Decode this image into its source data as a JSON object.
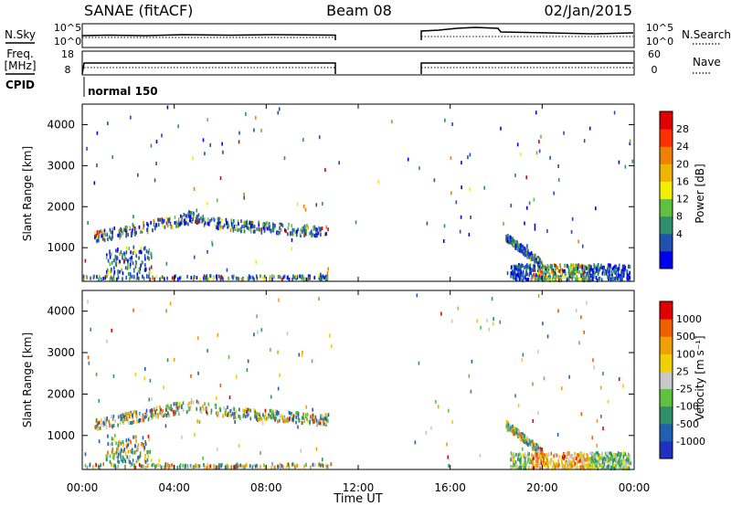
{
  "header": {
    "station": "SANAE (fitACF)",
    "beam": "Beam 08",
    "date": "02/Jan/2015"
  },
  "status_panels": {
    "nsky_label": "N.Sky",
    "nsearch_label": "N.Search",
    "noise_ticks": [
      "10^5",
      "10^0"
    ],
    "freq_label_line1": "Freq.",
    "freq_label_line2": "[MHz]",
    "freq_ticks": [
      "18",
      "8"
    ],
    "nave_label": "Nave",
    "nave_ticks": [
      "60",
      "0"
    ],
    "cpid_label": "CPID",
    "cpid_value": "normal 150"
  },
  "chart_data": [
    {
      "type": "heatmap",
      "name": "power",
      "ylabel": "Slant Range [km]",
      "colorbar_label": "Power [dB]",
      "colorbar_ticks": [
        "28",
        "24",
        "20",
        "16",
        "12",
        "8",
        "4"
      ],
      "colorbar_colors": [
        "#0000ee",
        "#2050b0",
        "#2f8f6a",
        "#60c040",
        "#f0f000",
        "#f0b400",
        "#f08000",
        "#ff3000",
        "#e00000"
      ],
      "ylim": [
        180,
        4500
      ],
      "yticks": [
        "1000",
        "2000",
        "3000",
        "4000"
      ],
      "xlim": [
        "00:00",
        "24:00"
      ],
      "data_gap_hours": [
        10.85,
        14.9
      ]
    },
    {
      "type": "heatmap",
      "name": "velocity",
      "ylabel": "Slant Range [km]",
      "colorbar_label": "Velocity [m s⁻¹]",
      "colorbar_ticks": [
        "1000",
        "500",
        "100",
        "25",
        "-25",
        "-100",
        "-500",
        "-1000"
      ],
      "colorbar_colors": [
        "#2030c0",
        "#2060b0",
        "#2f8f6a",
        "#60c040",
        "#c8c8c8",
        "#f0d000",
        "#f0a000",
        "#f06000",
        "#e00000"
      ],
      "ylim": [
        180,
        4500
      ],
      "yticks": [
        "1000",
        "2000",
        "3000",
        "4000"
      ],
      "xlim": [
        "00:00",
        "24:00"
      ],
      "data_gap_hours": [
        10.85,
        14.9
      ]
    }
  ],
  "x_axis": {
    "ticks": [
      "00:00",
      "04:00",
      "08:00",
      "12:00",
      "16:00",
      "20:00",
      "00:00"
    ],
    "label": "Time UT"
  }
}
